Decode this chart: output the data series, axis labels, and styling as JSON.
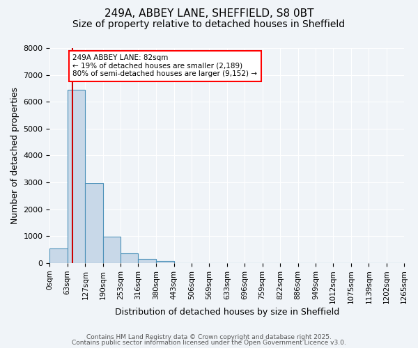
{
  "title": "249A, ABBEY LANE, SHEFFIELD, S8 0BT",
  "subtitle": "Size of property relative to detached houses in Sheffield",
  "bar_values": [
    550,
    6450,
    2980,
    980,
    370,
    160,
    70,
    0,
    0,
    0,
    0,
    0,
    0,
    0,
    0,
    0,
    0,
    0,
    0,
    0
  ],
  "bin_edges": [
    0,
    63,
    127,
    190,
    253,
    316,
    380,
    443,
    506,
    569,
    633,
    696,
    759,
    822,
    886,
    949,
    1012,
    1075,
    1139,
    1202,
    1265
  ],
  "tick_labels": [
    "0sqm",
    "63sqm",
    "127sqm",
    "190sqm",
    "253sqm",
    "316sqm",
    "380sqm",
    "443sqm",
    "506sqm",
    "569sqm",
    "633sqm",
    "696sqm",
    "759sqm",
    "822sqm",
    "886sqm",
    "949sqm",
    "1012sqm",
    "1075sqm",
    "1139sqm",
    "1202sqm",
    "1265sqm"
  ],
  "bar_color": "#c8d8e8",
  "bar_edge_color": "#4a90b8",
  "vline_x": 82,
  "vline_color": "#cc0000",
  "ylim": [
    0,
    8000
  ],
  "yticks": [
    0,
    1000,
    2000,
    3000,
    4000,
    5000,
    6000,
    7000,
    8000
  ],
  "xlabel": "Distribution of detached houses by size in Sheffield",
  "ylabel": "Number of detached properties",
  "annotation_title": "249A ABBEY LANE: 82sqm",
  "annotation_line1": "← 19% of detached houses are smaller (2,189)",
  "annotation_line2": "80% of semi-detached houses are larger (9,152) →",
  "footer1": "Contains HM Land Registry data © Crown copyright and database right 2025.",
  "footer2": "Contains public sector information licensed under the Open Government Licence v3.0.",
  "background_color": "#f0f4f8",
  "grid_color": "#ffffff",
  "title_fontsize": 11,
  "subtitle_fontsize": 10,
  "tick_fontsize": 7.5,
  "ylabel_fontsize": 9,
  "xlabel_fontsize": 9,
  "footer_fontsize": 6.5
}
